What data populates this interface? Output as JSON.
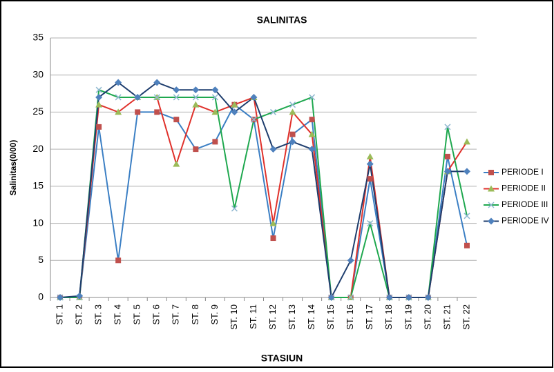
{
  "chart_data": {
    "type": "line",
    "title": "SALINITAS",
    "x_label": "STASIUN",
    "y_label": "Salinitas(0/00)",
    "categories": [
      "ST. 1",
      "ST. 2",
      "ST. 3",
      "ST. 4",
      "ST. 5",
      "ST. 6",
      "ST. 7",
      "ST. 8",
      "ST. 9",
      "ST. 10",
      "ST. 11",
      "ST. 12",
      "ST. 13",
      "ST. 14",
      "ST. 15",
      "ST. 16",
      "ST. 17",
      "ST. 18",
      "ST. 19",
      "ST. 20",
      "ST. 21",
      "ST. 22"
    ],
    "series": [
      {
        "name": "PERIODE I",
        "color": "#3B7FC4",
        "marker": "square",
        "marker_color": "#C0504D",
        "values": [
          0,
          0,
          23,
          5,
          25,
          25,
          24,
          20,
          21,
          26,
          24,
          8,
          22,
          24,
          0,
          0,
          16,
          0,
          0,
          0,
          19,
          7
        ]
      },
      {
        "name": "PERIODE II",
        "color": "#E0312B",
        "marker": "triangle",
        "marker_color": "#9BBB59",
        "values": [
          0,
          0,
          26,
          25,
          27,
          27,
          18,
          26,
          25,
          26,
          27,
          10,
          25,
          22,
          0,
          0,
          19,
          0,
          0,
          0,
          17,
          21
        ]
      },
      {
        "name": "PERIODE III",
        "color": "#1FA84F",
        "marker": "x",
        "marker_color": "#8FB8D0",
        "values": [
          0,
          0,
          28,
          27,
          27,
          27,
          27,
          27,
          27,
          12,
          24,
          25,
          26,
          27,
          0,
          0,
          10,
          0,
          0,
          0,
          23,
          11
        ]
      },
      {
        "name": "PERIODE IV",
        "color": "#1F3E6E",
        "marker": "diamond",
        "marker_color": "#4F81BD",
        "values": [
          0,
          0.2,
          27,
          29,
          27,
          29,
          28,
          28,
          28,
          25,
          27,
          20,
          21,
          20,
          0,
          5,
          18,
          0,
          0,
          0,
          17,
          17
        ]
      }
    ],
    "ylim": [
      0,
      35
    ],
    "yticks": [
      0,
      5,
      10,
      15,
      20,
      25,
      30,
      35
    ],
    "grid": true,
    "legend": "right"
  }
}
